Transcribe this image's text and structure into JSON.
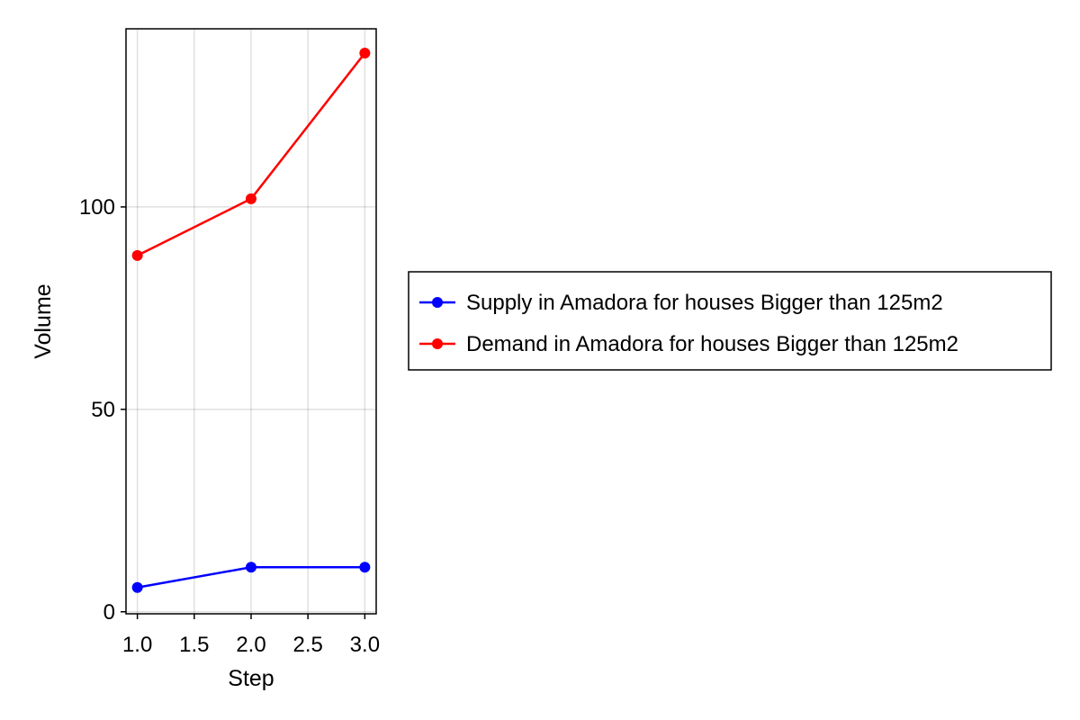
{
  "chart_data": {
    "type": "line",
    "title": "",
    "xlabel": "Step",
    "ylabel": "Volume",
    "x": [
      1.0,
      2.0,
      3.0
    ],
    "xlim": [
      0.9,
      3.1
    ],
    "ylim": [
      -0.5,
      144
    ],
    "xticks": [
      "1.0",
      "1.5",
      "2.0",
      "2.5",
      "3.0"
    ],
    "xtick_values": [
      1.0,
      1.5,
      2.0,
      2.5,
      3.0
    ],
    "yticks": [
      "0",
      "50",
      "100"
    ],
    "ytick_values": [
      0,
      50,
      100
    ],
    "grid": true,
    "legend_position": "right",
    "series": [
      {
        "name": "Supply in Amadora for houses Bigger than 125m2",
        "color": "#0000ff",
        "values": [
          6,
          11,
          11
        ]
      },
      {
        "name": "Demand in Amadora for houses Bigger than 125m2",
        "color": "#ff0000",
        "values": [
          88,
          102,
          138
        ]
      }
    ]
  }
}
